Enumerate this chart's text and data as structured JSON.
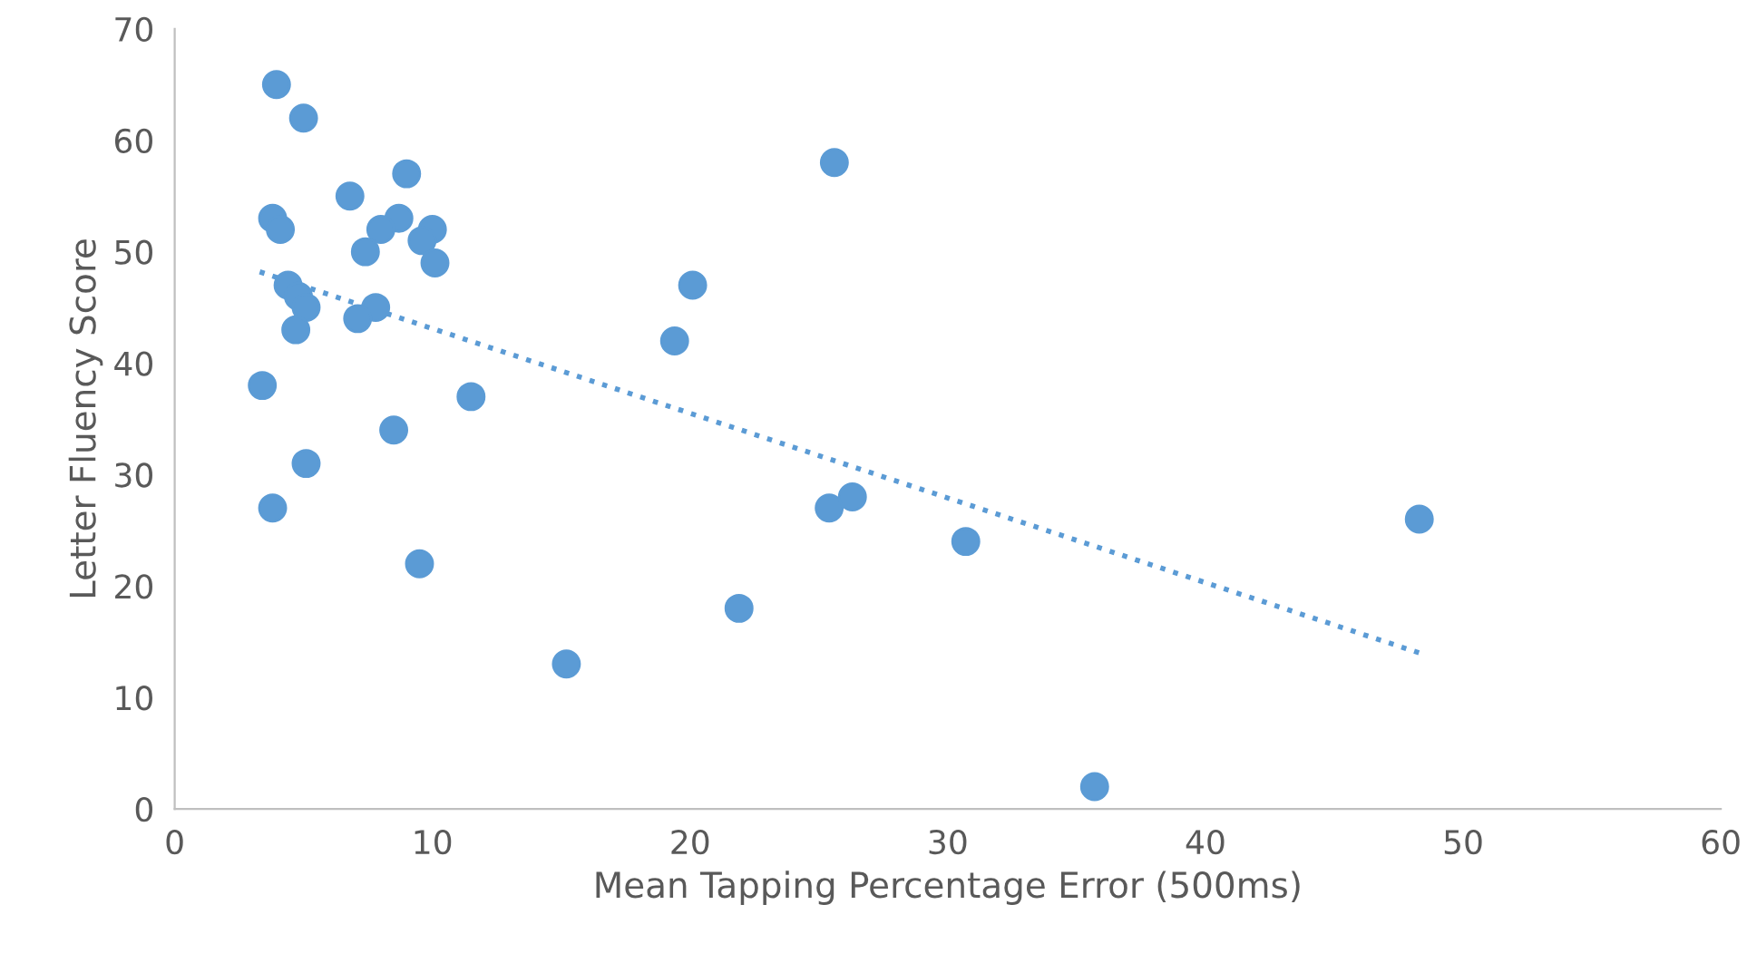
{
  "chart_data": {
    "type": "scatter",
    "xlabel": "Mean Tapping Percentage Error (500ms)",
    "ylabel": "Letter Fluency Score",
    "xlim": [
      0,
      60
    ],
    "ylim": [
      0,
      70
    ],
    "xticks": [
      0,
      10,
      20,
      30,
      40,
      50,
      60
    ],
    "yticks": [
      0,
      10,
      20,
      30,
      40,
      50,
      60,
      70
    ],
    "grid": false,
    "legend": false,
    "marker": "circle",
    "series": [
      {
        "color": "#5b9bd5",
        "x": [
          3.95,
          5.0,
          6.8,
          9.0,
          3.8,
          4.1,
          8.7,
          8.0,
          10.0,
          9.6,
          7.4,
          10.1,
          4.4,
          4.8,
          5.1,
          7.8,
          7.1,
          4.7,
          3.4,
          11.5,
          8.5,
          5.1,
          3.8,
          9.5,
          15.2,
          19.4,
          20.1,
          25.6,
          21.9,
          25.4,
          26.3,
          30.7,
          35.7,
          48.3
        ],
        "values": [
          65,
          62,
          55,
          57,
          53,
          52,
          53,
          52,
          52,
          51,
          50,
          49,
          47,
          46,
          45,
          45,
          44,
          43,
          38,
          37,
          34,
          31,
          27,
          22,
          13,
          42,
          47,
          58,
          18,
          27,
          28,
          24,
          2,
          26
        ]
      },
      {
        "type": "line",
        "line_style": "dotted",
        "marker": "none",
        "color": "#5b9bd5",
        "x": [
          3.3,
          48.3
        ],
        "values": [
          48.2,
          14.0
        ]
      }
    ]
  }
}
